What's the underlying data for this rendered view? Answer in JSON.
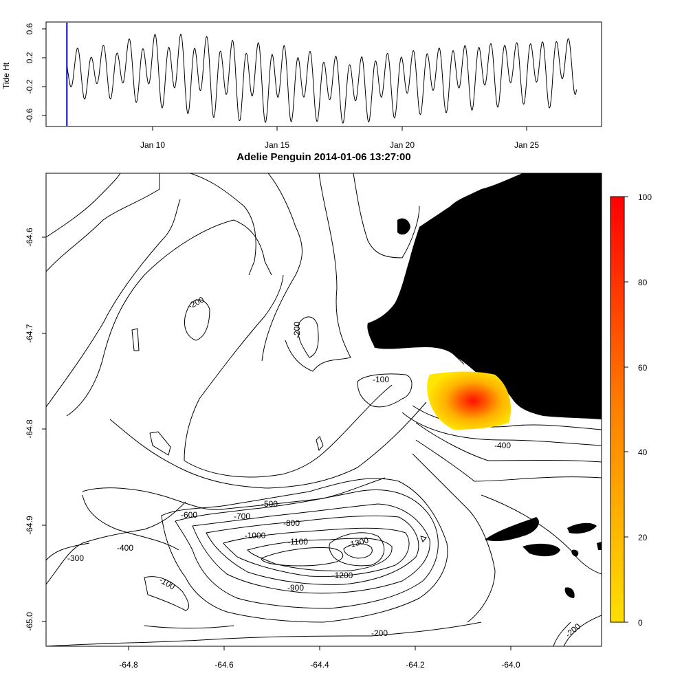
{
  "tide_panel": {
    "ylabel": "Tide Ht",
    "y_ticks": [
      "-0.6",
      "-0.2",
      "0.2",
      "0.6"
    ],
    "x_ticks": [
      "Jan 10",
      "Jan 15",
      "Jan 20",
      "Jan 25"
    ],
    "current_marker_color": "#0000cc"
  },
  "map_panel": {
    "title": "Adelie Penguin 2014-01-06 13:27:00",
    "x_ticks": [
      "-64.8",
      "-64.6",
      "-64.4",
      "-64.2",
      "-64.0"
    ],
    "y_ticks": [
      "-64.6",
      "-64.7",
      "-64.8",
      "-64.9",
      "-65.0"
    ],
    "contour_labels": [
      "-200",
      "-200",
      "-100",
      "-400",
      "-500",
      "-600",
      "-700",
      "-800",
      "-400",
      "-1000",
      "-1100",
      "-1300",
      "-300",
      "-1200",
      "-900",
      "-100",
      "-200",
      "-200"
    ],
    "land_color": "#000000",
    "colorbar": {
      "ticks": [
        "0",
        "20",
        "40",
        "60",
        "80",
        "100"
      ],
      "color_low": "#ffe000",
      "color_mid": "#ff8000",
      "color_high": "#ff0000"
    }
  },
  "chart_data": [
    {
      "type": "line",
      "title": "",
      "xlabel": "",
      "ylabel": "Tide Ht",
      "x_range": [
        "2014-01-06",
        "2014-01-27"
      ],
      "ylim": [
        -0.75,
        0.7
      ],
      "current_time": "2014-01-06 13:27:00",
      "series": [
        {
          "x": [
            "2014-01-06",
            "2014-01-07",
            "2014-01-08",
            "2014-01-09",
            "2014-01-10",
            "2014-01-11",
            "2014-01-12",
            "2014-01-13",
            "2014-01-14",
            "2014-01-15",
            "2014-01-16",
            "2014-01-17",
            "2014-01-18",
            "2014-01-19",
            "2014-01-20",
            "2014-01-21",
            "2014-01-22",
            "2014-01-23",
            "2014-01-24",
            "2014-01-25",
            "2014-01-26",
            "2014-01-27"
          ],
          "high": [
            0.32,
            0.38,
            0.42,
            0.52,
            0.6,
            0.62,
            0.6,
            0.55,
            0.52,
            0.5,
            0.42,
            0.34,
            0.3,
            0.36,
            0.4,
            0.44,
            0.48,
            0.52,
            0.54,
            0.55,
            0.58,
            0.62
          ],
          "low": [
            -0.5,
            -0.4,
            -0.38,
            -0.42,
            -0.48,
            -0.58,
            -0.62,
            -0.68,
            -0.7,
            -0.72,
            -0.68,
            -0.7,
            -0.72,
            -0.68,
            -0.62,
            -0.58,
            -0.56,
            -0.52,
            -0.48,
            -0.44,
            -0.5,
            -0.3
          ]
        }
      ]
    },
    {
      "type": "heatmap",
      "title": "Adelie Penguin 2014-01-06 13:27:00",
      "xlabel": "",
      "ylabel": "",
      "xlim": [
        -64.97,
        -63.78
      ],
      "ylim": [
        -65.03,
        -64.53
      ],
      "x_ticks": [
        -64.8,
        -64.6,
        -64.4,
        -64.2,
        -64.0
      ],
      "y_ticks": [
        -64.6,
        -64.7,
        -64.8,
        -64.9,
        -65.0
      ],
      "contour_levels": [
        -100,
        -200,
        -300,
        -400,
        -500,
        -600,
        -700,
        -800,
        -900,
        -1000,
        -1100,
        -1200,
        -1300
      ],
      "utilization_peak": {
        "lon": -64.07,
        "lat": -64.775,
        "value": 100
      },
      "utilization_extent": {
        "lon_min": -64.18,
        "lon_max": -63.99,
        "lat_min": -64.805,
        "lat_max": -64.745
      },
      "colorbar_range": [
        0,
        100
      ],
      "colorbar_ticks": [
        0,
        20,
        40,
        60,
        80,
        100
      ]
    }
  ]
}
